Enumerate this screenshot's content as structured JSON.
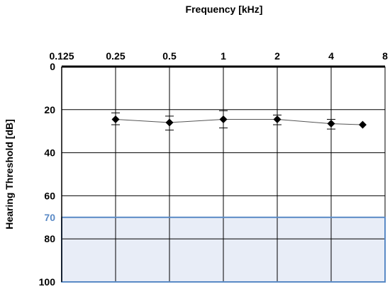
{
  "chart_data": {
    "type": "line",
    "title": "",
    "xlabel": "Frequency [kHz]",
    "ylabel": "Hearing Threshold [dB]",
    "x_scale": "log2",
    "y_inverted": true,
    "xlim": [
      0.125,
      8
    ],
    "ylim": [
      0,
      100
    ],
    "x_ticks": [
      "0.125",
      "0.25",
      "0.5",
      "1",
      "2",
      "4",
      "8"
    ],
    "x_tick_values": [
      0.125,
      0.25,
      0.5,
      1,
      2,
      4,
      8
    ],
    "y_ticks": [
      "0",
      "20",
      "40",
      "60",
      "80",
      "100"
    ],
    "y_tick_values": [
      0,
      20,
      40,
      60,
      80,
      100
    ],
    "grid": true,
    "series": [
      {
        "x": [
          0.25,
          0.5,
          1,
          2,
          4,
          6
        ],
        "y": [
          24.5,
          26,
          24.5,
          24.5,
          26.5,
          27
        ],
        "err_low": [
          21.5,
          23,
          20.5,
          22.5,
          24.5,
          null
        ],
        "err_high": [
          27,
          29.5,
          28.5,
          27,
          29,
          null
        ],
        "color": "#000000",
        "marker": "diamond"
      }
    ],
    "region": {
      "label": "70",
      "from": 70,
      "to": 100,
      "fill": "#e8edf7",
      "stroke": "#5a8ac6"
    }
  }
}
